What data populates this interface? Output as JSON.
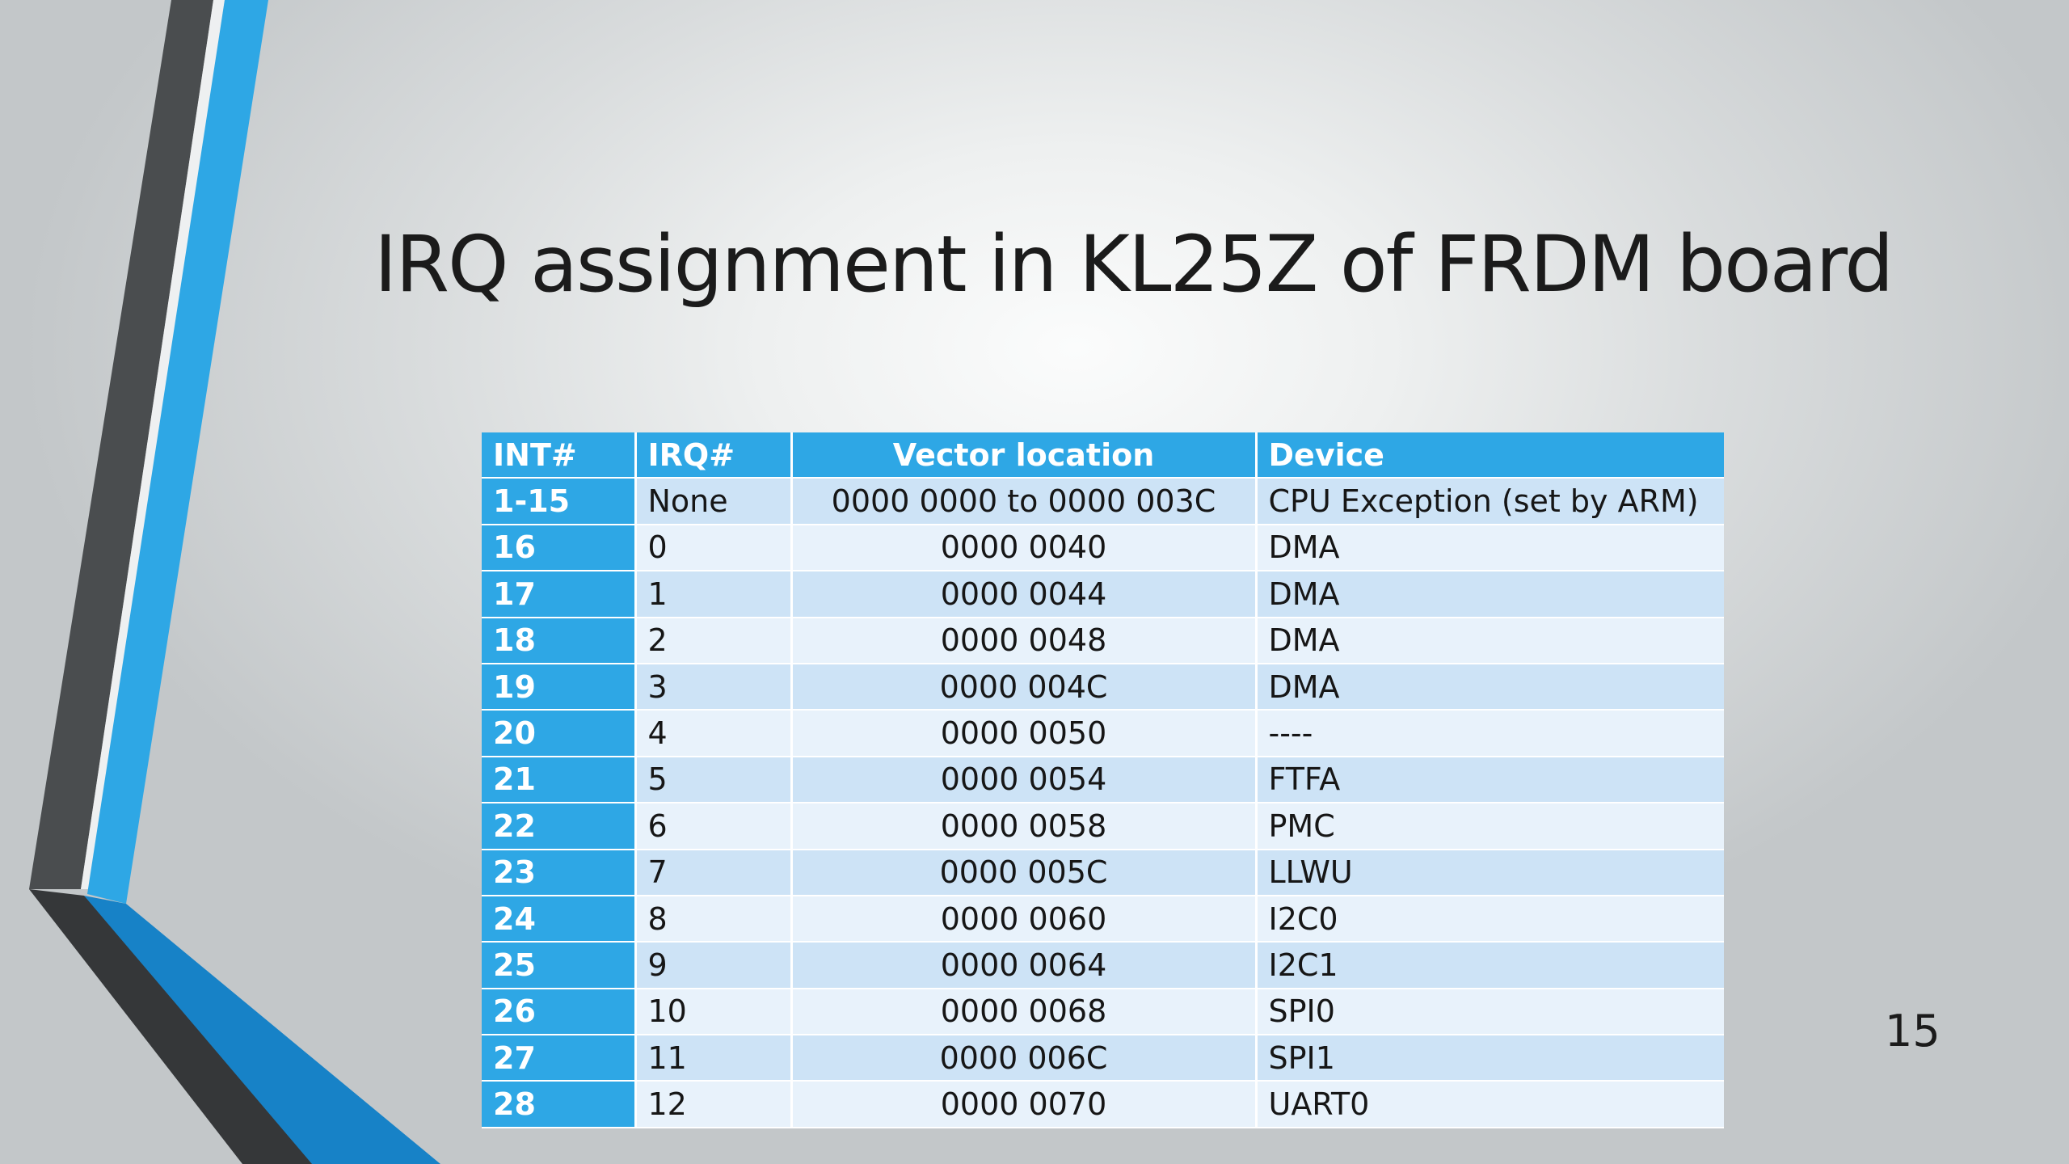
{
  "slide": {
    "title": "IRQ assignment in KL25Z of FRDM board",
    "page_number": "15"
  },
  "colors": {
    "accent_blue": "#2ea7e5",
    "dark_gray": "#4a4d4f",
    "row_odd": "#cde3f6",
    "row_even": "#e8f2fb"
  },
  "table": {
    "headers": [
      "INT#",
      "IRQ#",
      "Vector location",
      "Device"
    ],
    "rows": [
      {
        "int": "1-15",
        "irq": "None",
        "vector": "0000 0000 to 0000 003C",
        "device": "CPU Exception (set by ARM)"
      },
      {
        "int": "16",
        "irq": "0",
        "vector": "0000 0040",
        "device": "DMA"
      },
      {
        "int": "17",
        "irq": "1",
        "vector": "0000 0044",
        "device": "DMA"
      },
      {
        "int": "18",
        "irq": "2",
        "vector": "0000 0048",
        "device": "DMA"
      },
      {
        "int": "19",
        "irq": "3",
        "vector": "0000 004C",
        "device": "DMA"
      },
      {
        "int": "20",
        "irq": "4",
        "vector": "0000 0050",
        "device": "----"
      },
      {
        "int": "21",
        "irq": "5",
        "vector": "0000 0054",
        "device": "FTFA"
      },
      {
        "int": "22",
        "irq": "6",
        "vector": "0000 0058",
        "device": "PMC"
      },
      {
        "int": "23",
        "irq": "7",
        "vector": "0000 005C",
        "device": "LLWU"
      },
      {
        "int": "24",
        "irq": "8",
        "vector": "0000 0060",
        "device": "I2C0"
      },
      {
        "int": "25",
        "irq": "9",
        "vector": "0000 0064",
        "device": "I2C1"
      },
      {
        "int": "26",
        "irq": "10",
        "vector": "0000 0068",
        "device": "SPI0"
      },
      {
        "int": "27",
        "irq": "11",
        "vector": "0000 006C",
        "device": "SPI1"
      },
      {
        "int": "28",
        "irq": "12",
        "vector": "0000 0070",
        "device": "UART0"
      }
    ]
  }
}
